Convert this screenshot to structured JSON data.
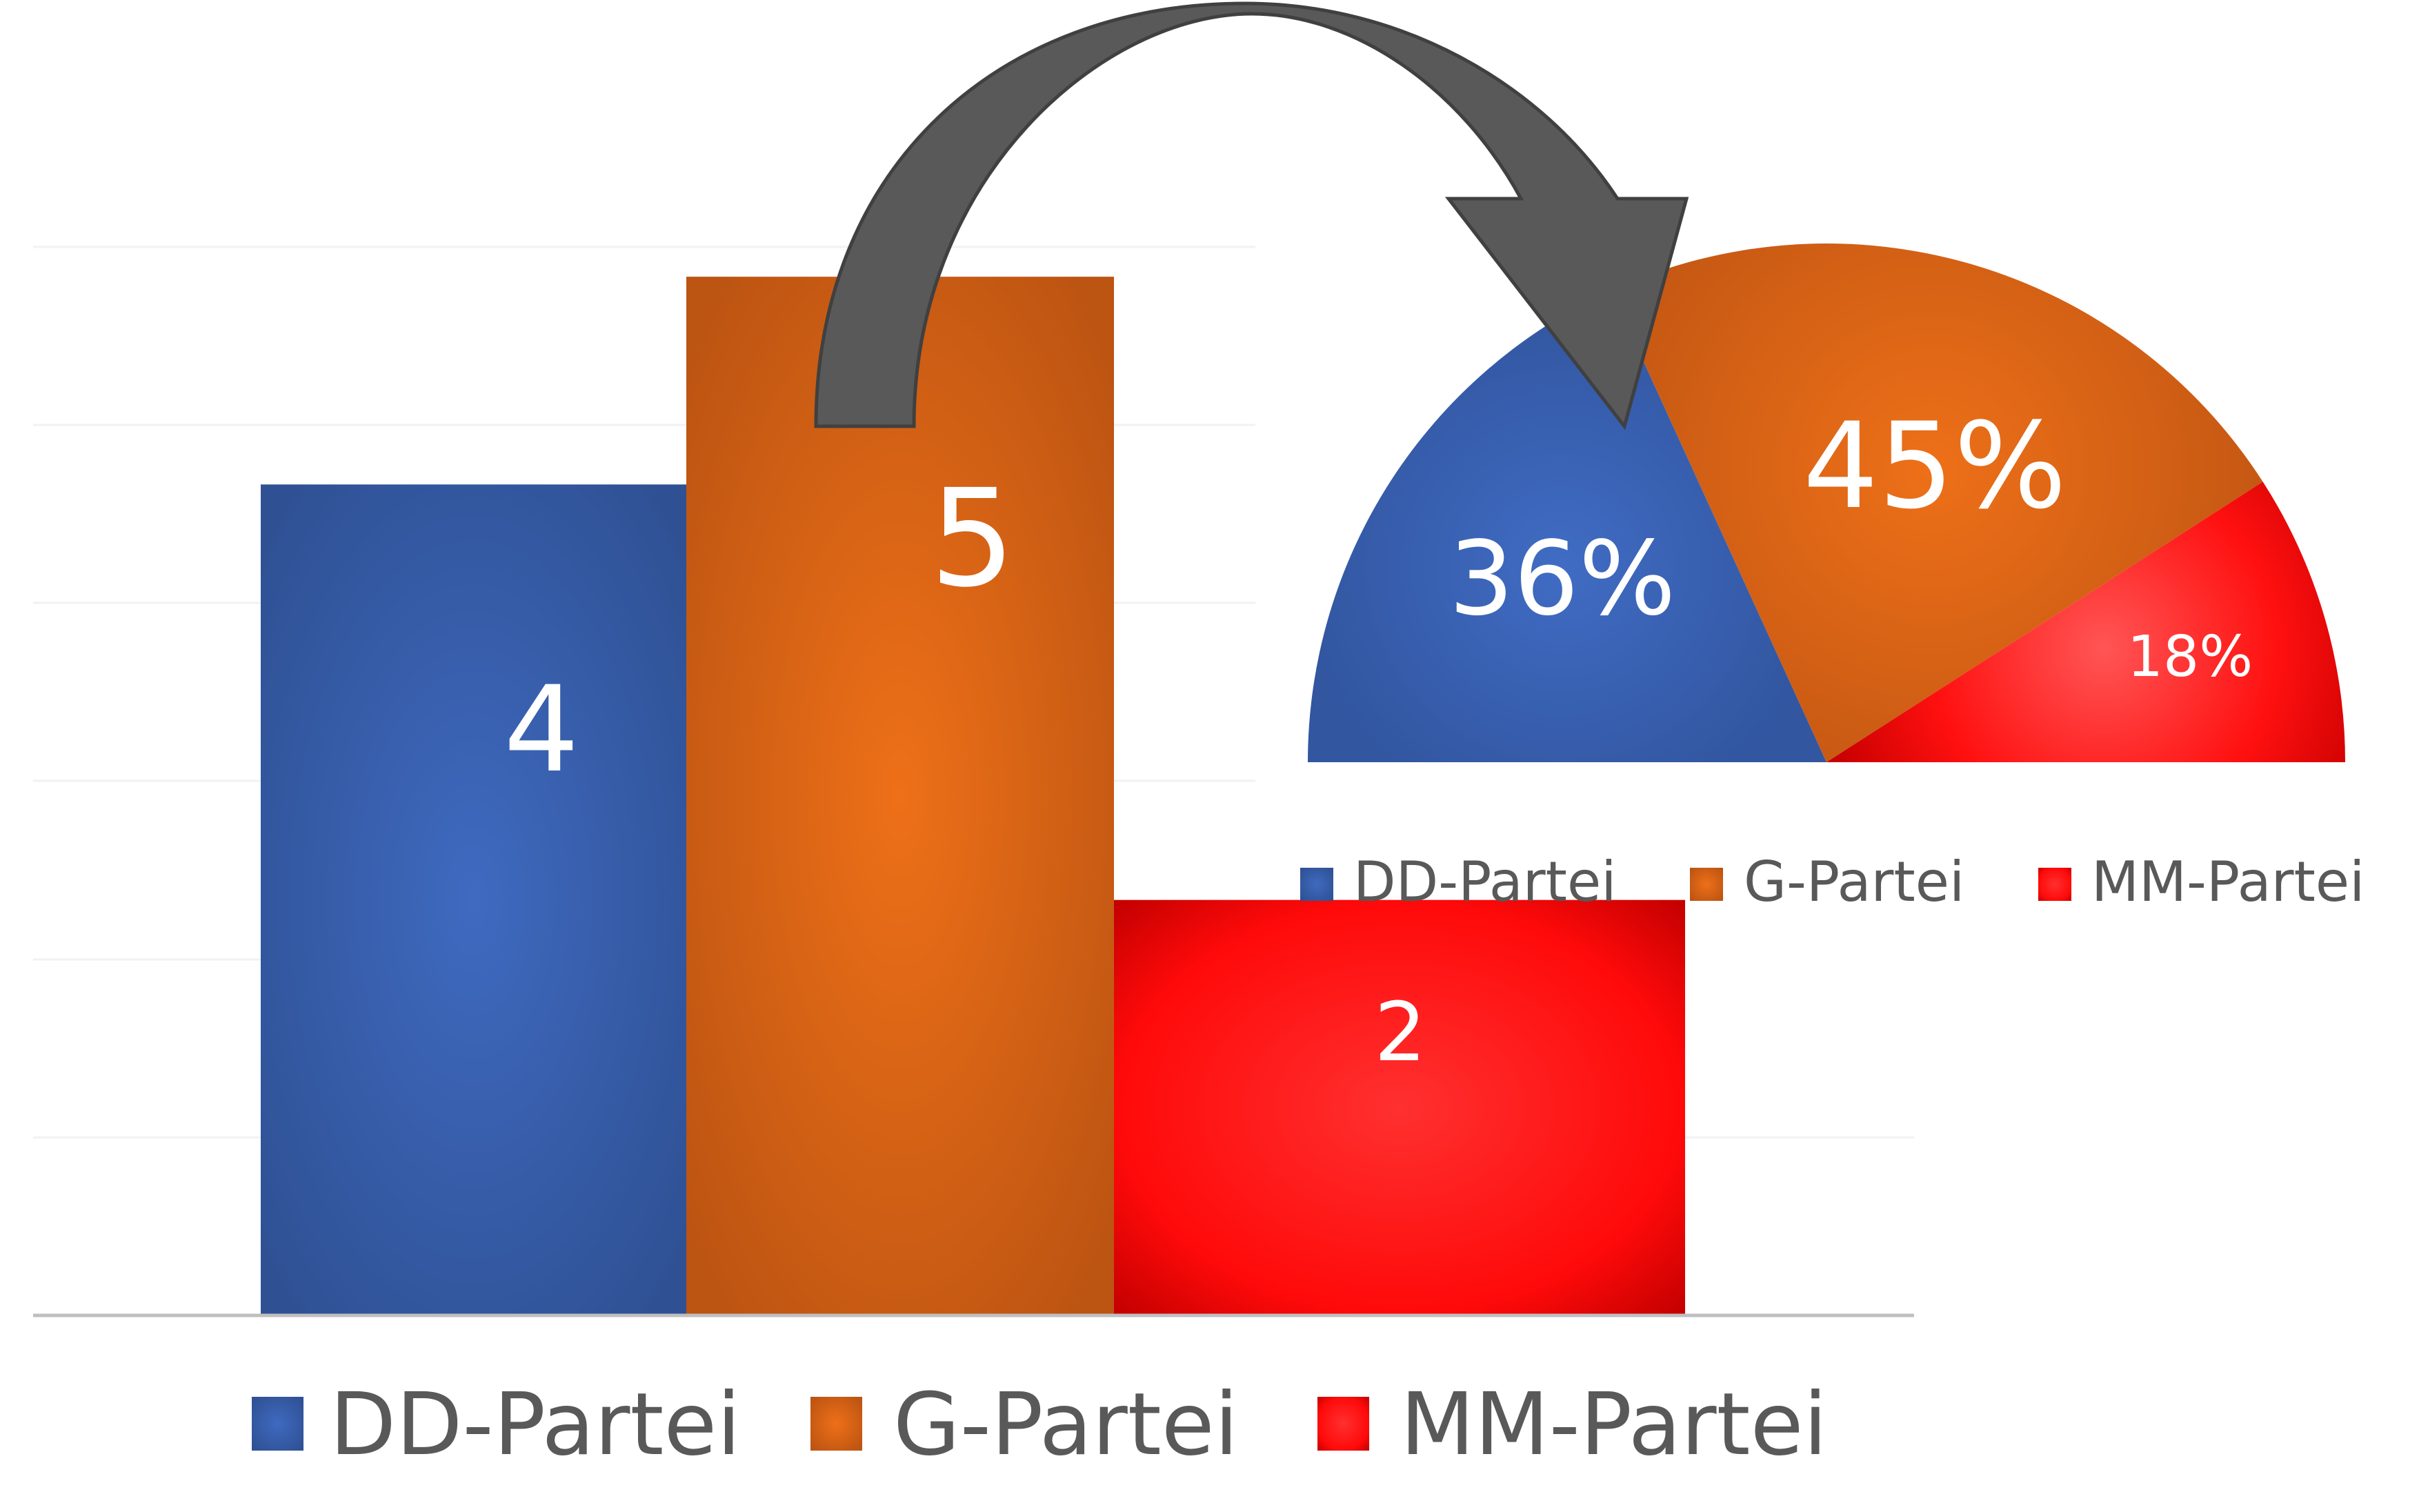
{
  "chart_data": [
    {
      "type": "bar",
      "categories": [
        "DD-Partei",
        "G-Partei",
        "MM-Partei"
      ],
      "values": [
        4,
        5,
        2
      ],
      "data_labels": [
        "4",
        "5",
        "2"
      ],
      "ylim": [
        0,
        6
      ],
      "grid": true,
      "legend": "bottom",
      "legend_labels": [
        "DD-Partei",
        "G-Partei",
        "MM-Partei"
      ],
      "colors": [
        "#3D66B3",
        "#E06A18",
        "#FF1111"
      ]
    },
    {
      "type": "pie",
      "style": "half-pie",
      "categories": [
        "DD-Partei",
        "G-Partei",
        "MM-Partei"
      ],
      "values": [
        36,
        45,
        18
      ],
      "data_labels": [
        "36%",
        "45%",
        "18%"
      ],
      "legend": "bottom",
      "legend_labels": [
        "DD-Partei",
        "G-Partei",
        "MM-Partei"
      ],
      "colors": [
        "#3D66B3",
        "#E06A18",
        "#FF1111"
      ]
    }
  ],
  "connector": {
    "icon": "curved-arrow-icon",
    "color": "#555555"
  }
}
